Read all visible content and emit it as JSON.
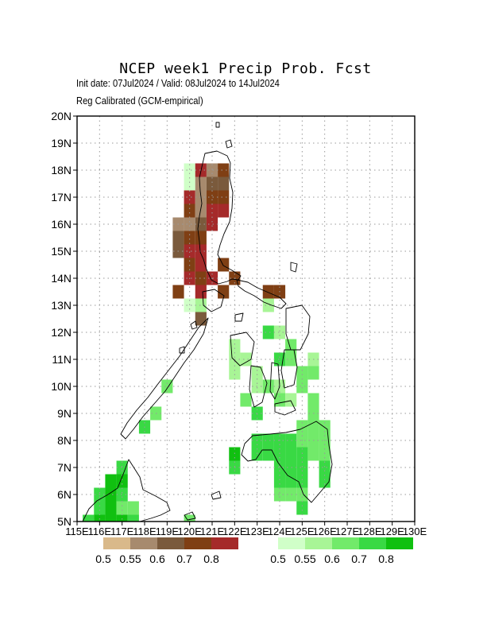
{
  "title": "NCEP  week1  Precip  Prob.  Fcst",
  "subtitle_dates": "Init date: 07Jul2024 / Valid: 08Jul2024 to 14Jul2024",
  "subtitle_method": "Reg Calibrated (GCM-empirical)",
  "map": {
    "lat_labels": [
      "5N",
      "6N",
      "7N",
      "8N",
      "9N",
      "10N",
      "11N",
      "12N",
      "13N",
      "14N",
      "15N",
      "16N",
      "17N",
      "18N",
      "19N",
      "20N"
    ],
    "lon_labels": [
      "115E",
      "116E",
      "117E",
      "118E",
      "119E",
      "120E",
      "121E",
      "122E",
      "123E",
      "124E",
      "125E",
      "126E",
      "127E",
      "128E",
      "129E",
      "130E"
    ],
    "lon_range": [
      115,
      130
    ],
    "lat_range": [
      5,
      20
    ],
    "grid": "dotted"
  },
  "legend_below": {
    "labels": [
      "0.5",
      "0.55",
      "0.6",
      "0.7",
      "0.8"
    ],
    "colors": [
      "#d9b98a",
      "#a78a6e",
      "#7a5a3c",
      "#7f3f14",
      "#a52a2a"
    ]
  },
  "legend_above": {
    "labels": [
      "0.5",
      "0.55",
      "0.6",
      "0.7",
      "0.8"
    ],
    "colors": [
      "#d0ffc8",
      "#a8f596",
      "#72ea6a",
      "#39d944",
      "#10c010"
    ]
  },
  "cells": [
    {
      "lon": 120,
      "lat": 18,
      "c": 5
    },
    {
      "lon": 120.5,
      "lat": 18,
      "c": 4
    },
    {
      "lon": 121,
      "lat": 18,
      "c": 1
    },
    {
      "lon": 121.5,
      "lat": 18,
      "c": 3
    },
    {
      "lon": 120,
      "lat": 17.5,
      "c": 5
    },
    {
      "lon": 120.5,
      "lat": 17.5,
      "c": 1
    },
    {
      "lon": 121,
      "lat": 17.5,
      "c": 2
    },
    {
      "lon": 121.5,
      "lat": 17.5,
      "c": 2
    },
    {
      "lon": 120,
      "lat": 17,
      "c": 4
    },
    {
      "lon": 120.5,
      "lat": 17,
      "c": 1
    },
    {
      "lon": 121,
      "lat": 17,
      "c": 3
    },
    {
      "lon": 121.5,
      "lat": 17,
      "c": 3
    },
    {
      "lon": 120,
      "lat": 16.5,
      "c": 3
    },
    {
      "lon": 120.5,
      "lat": 16.5,
      "c": 1
    },
    {
      "lon": 121,
      "lat": 16.5,
      "c": 4
    },
    {
      "lon": 121.5,
      "lat": 16.5,
      "c": 4
    },
    {
      "lon": 119.5,
      "lat": 16,
      "c": 1
    },
    {
      "lon": 120,
      "lat": 16,
      "c": 1
    },
    {
      "lon": 120.5,
      "lat": 16,
      "c": 2
    },
    {
      "lon": 121,
      "lat": 16,
      "c": 4
    },
    {
      "lon": 119.5,
      "lat": 15.5,
      "c": 2
    },
    {
      "lon": 120,
      "lat": 15.5,
      "c": 3
    },
    {
      "lon": 120.5,
      "lat": 15.5,
      "c": 3
    },
    {
      "lon": 119.5,
      "lat": 15,
      "c": 2
    },
    {
      "lon": 120,
      "lat": 15,
      "c": 4
    },
    {
      "lon": 120.5,
      "lat": 15,
      "c": 4
    },
    {
      "lon": 120,
      "lat": 14.5,
      "c": 3
    },
    {
      "lon": 120.5,
      "lat": 14.5,
      "c": 4
    },
    {
      "lon": 121.5,
      "lat": 14.5,
      "c": 3
    },
    {
      "lon": 120,
      "lat": 14,
      "c": 4
    },
    {
      "lon": 120.5,
      "lat": 14,
      "c": 3
    },
    {
      "lon": 121,
      "lat": 14,
      "c": 4
    },
    {
      "lon": 122,
      "lat": 14,
      "c": 3
    },
    {
      "lon": 119.5,
      "lat": 13.5,
      "c": 3
    },
    {
      "lon": 120.5,
      "lat": 13.5,
      "c": 4
    },
    {
      "lon": 121.5,
      "lat": 13.5,
      "c": 3
    },
    {
      "lon": 123.5,
      "lat": 13.5,
      "c": 3
    },
    {
      "lon": 124,
      "lat": 13.5,
      "c": 3
    },
    {
      "lon": 120,
      "lat": 13,
      "c": 5
    },
    {
      "lon": 120.5,
      "lat": 13,
      "c": 6
    },
    {
      "lon": 123.5,
      "lat": 13,
      "c": 6
    },
    {
      "lon": 120.5,
      "lat": 12.5,
      "c": 2
    },
    {
      "lon": 123.5,
      "lat": 12,
      "c": 8
    },
    {
      "lon": 124,
      "lat": 12,
      "c": 6
    },
    {
      "lon": 122,
      "lat": 11.5,
      "c": 6
    },
    {
      "lon": 124.5,
      "lat": 11.5,
      "c": 7
    },
    {
      "lon": 122,
      "lat": 11,
      "c": 6
    },
    {
      "lon": 122.5,
      "lat": 11,
      "c": 6
    },
    {
      "lon": 124,
      "lat": 11,
      "c": 8
    },
    {
      "lon": 124.5,
      "lat": 11,
      "c": 7
    },
    {
      "lon": 125.5,
      "lat": 11,
      "c": 6
    },
    {
      "lon": 122,
      "lat": 10.5,
      "c": 6
    },
    {
      "lon": 123,
      "lat": 10.5,
      "c": 6
    },
    {
      "lon": 125,
      "lat": 10.5,
      "c": 7
    },
    {
      "lon": 125.5,
      "lat": 10.5,
      "c": 7
    },
    {
      "lon": 119,
      "lat": 10,
      "c": 7
    },
    {
      "lon": 123,
      "lat": 10,
      "c": 6
    },
    {
      "lon": 123.5,
      "lat": 10,
      "c": 7
    },
    {
      "lon": 124,
      "lat": 10,
      "c": 6
    },
    {
      "lon": 125,
      "lat": 10,
      "c": 7
    },
    {
      "lon": 122.5,
      "lat": 9.5,
      "c": 7
    },
    {
      "lon": 124,
      "lat": 9.5,
      "c": 7
    },
    {
      "lon": 124.5,
      "lat": 9.5,
      "c": 6
    },
    {
      "lon": 125.5,
      "lat": 9.5,
      "c": 7
    },
    {
      "lon": 118.5,
      "lat": 9,
      "c": 7
    },
    {
      "lon": 123,
      "lat": 9,
      "c": 8
    },
    {
      "lon": 125.5,
      "lat": 9,
      "c": 7
    },
    {
      "lon": 118,
      "lat": 8.5,
      "c": 8
    },
    {
      "lon": 125,
      "lat": 8.5,
      "c": 7
    },
    {
      "lon": 125.5,
      "lat": 8.5,
      "c": 7
    },
    {
      "lon": 126,
      "lat": 8.5,
      "c": 7
    },
    {
      "lon": 123,
      "lat": 8,
      "c": 8
    },
    {
      "lon": 123.5,
      "lat": 8,
      "c": 8
    },
    {
      "lon": 124,
      "lat": 8,
      "c": 8
    },
    {
      "lon": 124.5,
      "lat": 8,
      "c": 8
    },
    {
      "lon": 125,
      "lat": 8,
      "c": 7
    },
    {
      "lon": 125.5,
      "lat": 8,
      "c": 7
    },
    {
      "lon": 126,
      "lat": 8,
      "c": 7
    },
    {
      "lon": 122,
      "lat": 7.5,
      "c": 9
    },
    {
      "lon": 123,
      "lat": 7.5,
      "c": 8
    },
    {
      "lon": 123.5,
      "lat": 7.5,
      "c": 8
    },
    {
      "lon": 124,
      "lat": 7.5,
      "c": 8
    },
    {
      "lon": 124.5,
      "lat": 7.5,
      "c": 8
    },
    {
      "lon": 125,
      "lat": 7.5,
      "c": 8
    },
    {
      "lon": 125.5,
      "lat": 7.5,
      "c": 7
    },
    {
      "lon": 126,
      "lat": 7.5,
      "c": 7
    },
    {
      "lon": 117,
      "lat": 7,
      "c": 8
    },
    {
      "lon": 122,
      "lat": 7,
      "c": 8
    },
    {
      "lon": 124,
      "lat": 7,
      "c": 8
    },
    {
      "lon": 124.5,
      "lat": 7,
      "c": 8
    },
    {
      "lon": 125,
      "lat": 7,
      "c": 8
    },
    {
      "lon": 126,
      "lat": 7,
      "c": 8
    },
    {
      "lon": 116.5,
      "lat": 6.5,
      "c": 9
    },
    {
      "lon": 117,
      "lat": 6.5,
      "c": 9
    },
    {
      "lon": 124,
      "lat": 6.5,
      "c": 8
    },
    {
      "lon": 124.5,
      "lat": 6.5,
      "c": 8
    },
    {
      "lon": 125,
      "lat": 6.5,
      "c": 8
    },
    {
      "lon": 126,
      "lat": 6.5,
      "c": 8
    },
    {
      "lon": 116,
      "lat": 6,
      "c": 8
    },
    {
      "lon": 116.5,
      "lat": 6,
      "c": 9
    },
    {
      "lon": 117,
      "lat": 6,
      "c": 8
    },
    {
      "lon": 124,
      "lat": 6,
      "c": 7
    },
    {
      "lon": 124.5,
      "lat": 6,
      "c": 7
    },
    {
      "lon": 125,
      "lat": 6,
      "c": 7
    },
    {
      "lon": 116,
      "lat": 5.5,
      "c": 8
    },
    {
      "lon": 116.5,
      "lat": 5.5,
      "c": 9
    },
    {
      "lon": 117,
      "lat": 5.5,
      "c": 7
    },
    {
      "lon": 117.5,
      "lat": 5.5,
      "c": 7
    },
    {
      "lon": 125,
      "lat": 5.5,
      "c": 8
    },
    {
      "lon": 115.5,
      "lat": 5,
      "c": 8
    },
    {
      "lon": 116,
      "lat": 5,
      "c": 9
    },
    {
      "lon": 116.5,
      "lat": 5,
      "c": 9
    },
    {
      "lon": 117,
      "lat": 5,
      "c": 9
    },
    {
      "lon": 117.5,
      "lat": 5,
      "c": 8
    },
    {
      "lon": 120,
      "lat": 5,
      "c": 7
    }
  ]
}
